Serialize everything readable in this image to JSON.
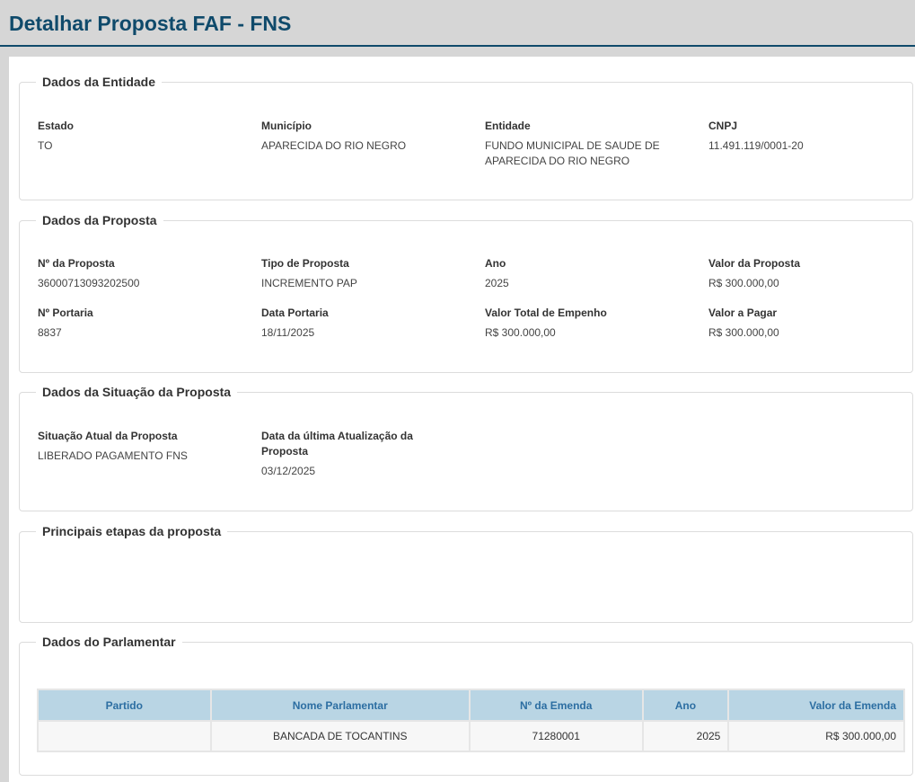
{
  "page": {
    "title": "Detalhar Proposta FAF - FNS"
  },
  "entidade": {
    "legend": "Dados da Entidade",
    "estado": {
      "label": "Estado",
      "value": "TO"
    },
    "municipio": {
      "label": "Município",
      "value": "APARECIDA DO RIO NEGRO"
    },
    "entidade": {
      "label": "Entidade",
      "value": "FUNDO MUNICIPAL DE SAUDE DE APARECIDA DO RIO NEGRO"
    },
    "cnpj": {
      "label": "CNPJ",
      "value": "11.491.119/0001-20"
    }
  },
  "proposta": {
    "legend": "Dados da Proposta",
    "numero": {
      "label": "Nº da Proposta",
      "value": "36000713093202500"
    },
    "tipo": {
      "label": "Tipo de Proposta",
      "value": "INCREMENTO PAP"
    },
    "ano": {
      "label": "Ano",
      "value": "2025"
    },
    "valor": {
      "label": "Valor da Proposta",
      "value": "R$ 300.000,00"
    },
    "portaria": {
      "label": "Nº Portaria",
      "value": "8837"
    },
    "data_portaria": {
      "label": "Data Portaria",
      "value": "18/11/2025"
    },
    "valor_empenho": {
      "label": "Valor Total de Empenho",
      "value": "R$ 300.000,00"
    },
    "valor_pagar": {
      "label": "Valor a Pagar",
      "value": "R$ 300.000,00"
    }
  },
  "situacao": {
    "legend": "Dados da Situação da Proposta",
    "atual": {
      "label": "Situação Atual da Proposta",
      "value": "LIBERADO PAGAMENTO FNS"
    },
    "atualizacao": {
      "label": "Data da última Atualização da Proposta",
      "value": "03/12/2025"
    }
  },
  "etapas": {
    "legend": "Principais etapas da proposta"
  },
  "parlamentar": {
    "legend": "Dados do Parlamentar",
    "columns": [
      "Partido",
      "Nome Parlamentar",
      "Nº da Emenda",
      "Ano",
      "Valor da Emenda"
    ],
    "rows": [
      {
        "partido": "",
        "nome": "BANCADA DE TOCANTINS",
        "emenda": "71280001",
        "ano": "2025",
        "valor": "R$ 300.000,00"
      }
    ]
  }
}
